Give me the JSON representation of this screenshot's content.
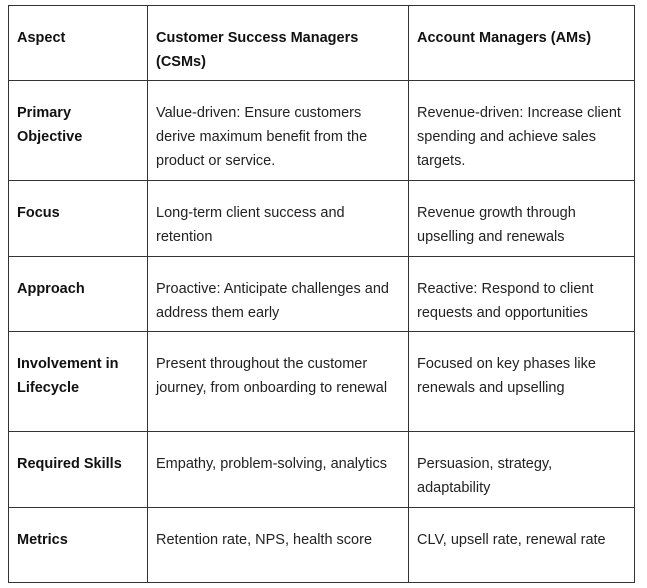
{
  "table": {
    "header": [
      "Aspect",
      "Customer Success Managers (CSMs)",
      "Account Managers (AMs)"
    ],
    "rows": [
      [
        "Primary Objective",
        "Value-driven: Ensure customers derive maximum benefit from the product or service.",
        "Revenue-driven: Increase client spending and achieve sales targets."
      ],
      [
        "Focus",
        "Long-term client success and retention",
        "Revenue growth through upselling and renewals"
      ],
      [
        "Approach",
        "Proactive: Anticipate challenges and address them early",
        "Reactive: Respond to client requests and opportunities"
      ],
      [
        "Involvement in Lifecycle",
        "Present throughout the customer journey, from onboarding to renewal",
        "Focused on key phases like renewals and upselling"
      ],
      [
        "Required Skills",
        "Empathy, problem-solving, analytics",
        "Persuasion, strategy, adaptability"
      ],
      [
        "Metrics",
        "Retention rate, NPS, health score",
        "CLV, upsell rate, renewal rate"
      ]
    ]
  }
}
